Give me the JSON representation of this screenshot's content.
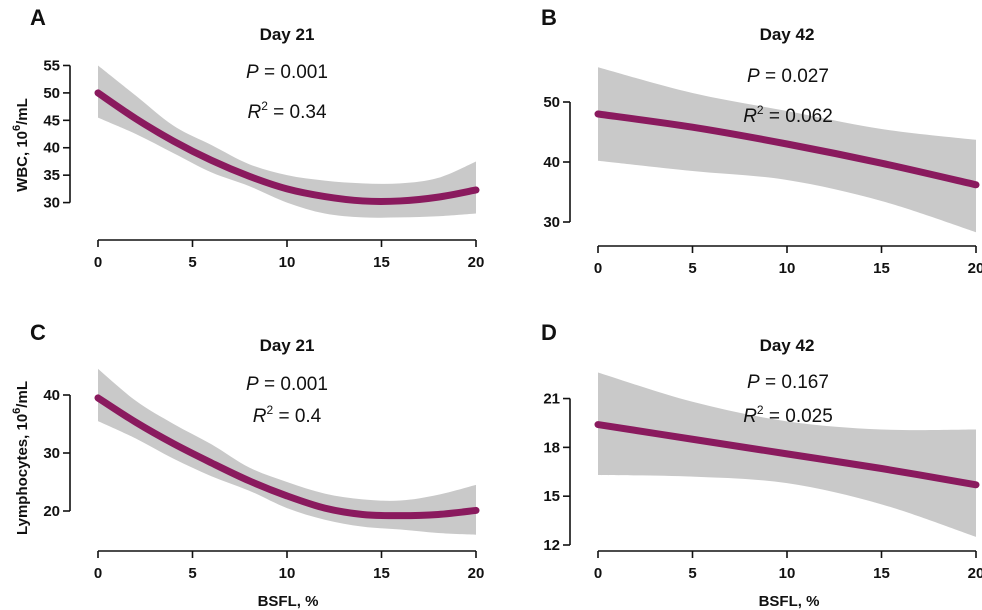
{
  "colors": {
    "fit_line": "#8a1a5e",
    "ci_band": "#c9c9c9",
    "axis": "#111111"
  },
  "chart_data": [
    {
      "panel": "A",
      "type": "line",
      "title": "Day 21",
      "xlabel": "",
      "ylabel": "WBC, 10^6/mL",
      "xlim": [
        0,
        20
      ],
      "ylim": [
        25,
        56
      ],
      "xticks": [
        0,
        5,
        10,
        15,
        20
      ],
      "yticks": [
        30,
        35,
        40,
        45,
        50,
        55
      ],
      "annotations": {
        "p_label": "P",
        "p_value": "0.001",
        "r2_label": "R",
        "r2_value": "0.34"
      },
      "x": [
        0,
        2,
        4,
        6,
        8,
        10,
        12,
        14,
        16,
        18,
        20
      ],
      "y": [
        50,
        45.3,
        41.2,
        37.7,
        34.8,
        32.5,
        31.1,
        30.3,
        30.3,
        31,
        32.3
      ],
      "ci_lower": [
        45.5,
        42.5,
        39,
        35.5,
        33,
        30,
        28,
        27.3,
        27.3,
        27.5,
        28
      ],
      "ci_upper": [
        55,
        49.5,
        44,
        40.5,
        37,
        35,
        34,
        33.5,
        33.5,
        34.5,
        37.5
      ]
    },
    {
      "panel": "B",
      "type": "line",
      "title": "Day 42",
      "xlabel": "",
      "ylabel": "",
      "xlim": [
        0,
        20
      ],
      "ylim": [
        27,
        57
      ],
      "xticks": [
        0,
        5,
        10,
        15,
        20
      ],
      "yticks": [
        30,
        40,
        50
      ],
      "annotations": {
        "p_label": "P",
        "p_value": "0.027",
        "r2_label": "R",
        "r2_value": "0.062"
      },
      "x": [
        0,
        5,
        10,
        15,
        20
      ],
      "y": [
        48,
        45.8,
        43,
        39.8,
        36.2
      ],
      "ci_lower": [
        40.2,
        38.5,
        37,
        33.5,
        28.3
      ],
      "ci_upper": [
        55.8,
        51.5,
        48.5,
        45.5,
        43.7
      ]
    },
    {
      "panel": "C",
      "type": "line",
      "title": "Day 21",
      "xlabel": "BSFL, %",
      "ylabel": "Lymphocytes, 10^6/mL",
      "xlim": [
        0,
        20
      ],
      "ylim": [
        15,
        45
      ],
      "xticks": [
        0,
        5,
        10,
        15,
        20
      ],
      "yticks": [
        20,
        30,
        40
      ],
      "annotations": {
        "p_label": "P",
        "p_value": "0.001",
        "r2_label": "R",
        "r2_value": "0.4"
      },
      "x": [
        0,
        2,
        4,
        6,
        8,
        10,
        12,
        14,
        16,
        18,
        20
      ],
      "y": [
        39.5,
        35.3,
        31.6,
        28.3,
        25.2,
        22.6,
        20.5,
        19.4,
        19.2,
        19.4,
        20.1
      ],
      "ci_lower": [
        35.5,
        32.5,
        29,
        26,
        23.5,
        20.5,
        18.5,
        17.3,
        16.8,
        16.2,
        15.9
      ],
      "ci_upper": [
        44.5,
        39,
        35,
        31.5,
        27.5,
        25,
        23,
        22,
        21.8,
        22.8,
        24.5
      ]
    },
    {
      "panel": "D",
      "type": "line",
      "title": "Day 42",
      "xlabel": "BSFL, %",
      "ylabel": "",
      "xlim": [
        0,
        20
      ],
      "ylim": [
        12,
        23
      ],
      "xticks": [
        0,
        5,
        10,
        15,
        20
      ],
      "yticks": [
        12,
        15,
        18,
        21
      ],
      "annotations": {
        "p_label": "P",
        "p_value": "0.167",
        "r2_label": "R",
        "r2_value": "0.025"
      },
      "x": [
        0,
        5,
        10,
        15,
        20
      ],
      "y": [
        19.4,
        18.5,
        17.6,
        16.7,
        15.7
      ],
      "ci_lower": [
        16.3,
        16.2,
        15.8,
        14.5,
        12.5
      ],
      "ci_upper": [
        22.6,
        20.8,
        19.6,
        19.1,
        19.1
      ]
    }
  ]
}
